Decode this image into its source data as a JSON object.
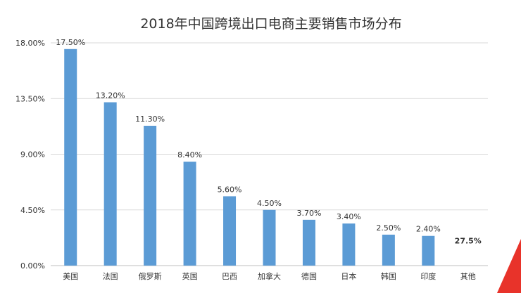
{
  "chart_data": {
    "type": "bar",
    "title": "2018年中国跨境出口电商主要销售市场分布",
    "categories": [
      "美国",
      "法国",
      "俄罗斯",
      "英国",
      "巴西",
      "加拿大",
      "德国",
      "日本",
      "韩国",
      "印度",
      "其他"
    ],
    "values": [
      17.5,
      13.2,
      11.3,
      8.4,
      5.6,
      4.5,
      3.7,
      3.4,
      2.5,
      2.4,
      null
    ],
    "data_labels": [
      "17.50%",
      "13.20%",
      "11.30%",
      "8.40%",
      "5.60%",
      "4.50%",
      "3.70%",
      "3.40%",
      "2.50%",
      "2.40%",
      "27.5%"
    ],
    "ylim": [
      0,
      18
    ],
    "yticks": [
      0,
      4.5,
      9,
      13.5,
      18
    ],
    "ytick_labels": [
      "0.00%",
      "4.50%",
      "9.00%",
      "13.50%",
      "18.00%"
    ],
    "grid": true,
    "colors": {
      "bar": "#5b9bd5",
      "decor": "#e8332a"
    }
  }
}
